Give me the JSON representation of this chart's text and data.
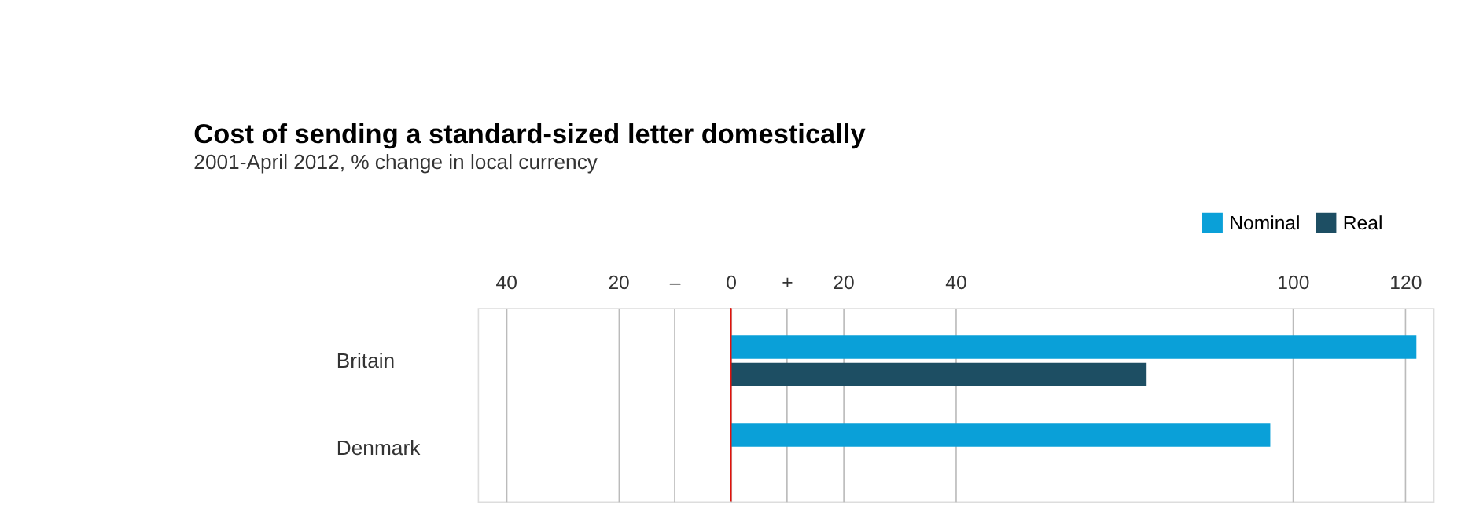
{
  "chart_data": {
    "type": "bar",
    "orientation": "horizontal",
    "title": "Cost of sending a standard-sized letter domestically",
    "subtitle": "2001-April 2012, % change in local currency",
    "categories": [
      "Britain",
      "Denmark"
    ],
    "series": [
      {
        "name": "Nominal",
        "color": "#0aa0d8",
        "values": [
          122,
          96
        ]
      },
      {
        "name": "Real",
        "color": "#1d4e63",
        "values": [
          74,
          null
        ]
      }
    ],
    "xlim": [
      -45,
      125
    ],
    "xticks": [
      {
        "value": -40,
        "label": "40"
      },
      {
        "value": -20,
        "label": "20"
      },
      {
        "value": -10,
        "label": "–"
      },
      0,
      {
        "value": 10,
        "label": "+"
      },
      20,
      40,
      100,
      120
    ],
    "ref_lines": [
      {
        "axis": "x",
        "value": 0,
        "color": "#e3120b"
      }
    ],
    "grid": "x",
    "legend": "top right"
  }
}
